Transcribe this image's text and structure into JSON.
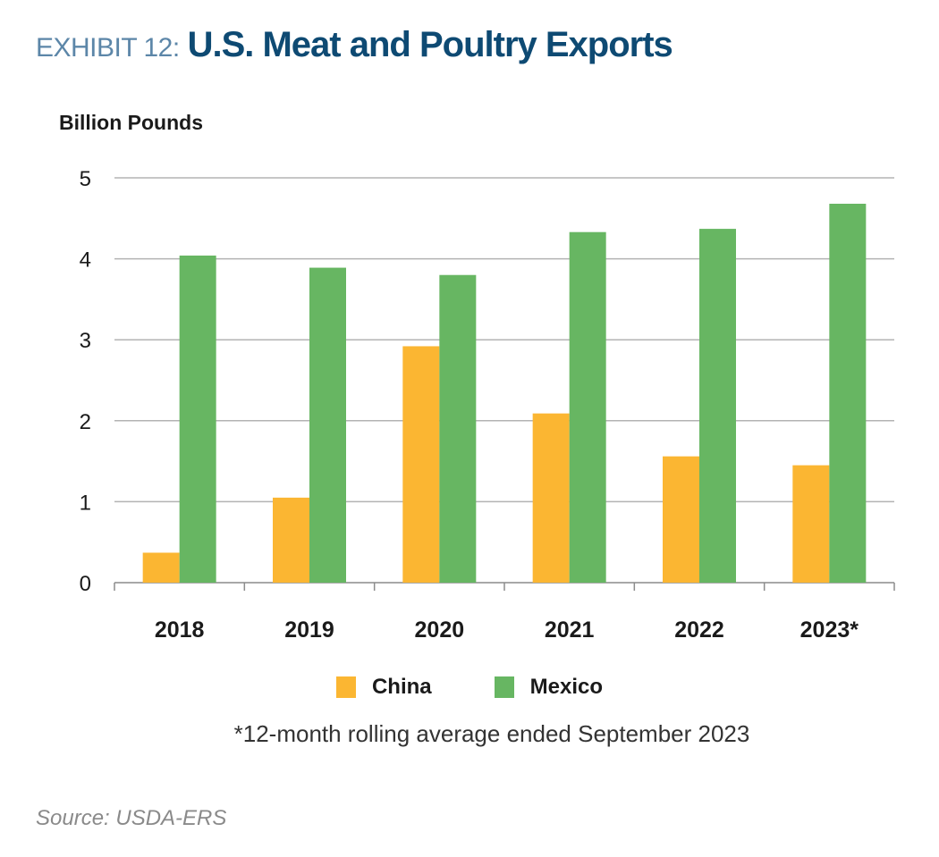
{
  "header": {
    "exhibit_label": "EXHIBIT 12:",
    "title": "U.S. Meat and Poultry Exports"
  },
  "chart_data": {
    "type": "bar",
    "title": "U.S. Meat and Poultry Exports",
    "ylabel": "Billion Pounds",
    "xlabel": "",
    "categories": [
      "2018",
      "2019",
      "2020",
      "2021",
      "2022",
      "2023*"
    ],
    "series": [
      {
        "name": "China",
        "color": "#fbb632",
        "values": [
          0.37,
          1.05,
          2.92,
          2.09,
          1.56,
          1.45
        ]
      },
      {
        "name": "Mexico",
        "color": "#67b662",
        "values": [
          4.04,
          3.89,
          3.8,
          4.33,
          4.37,
          4.68
        ]
      }
    ],
    "ylim": [
      0,
      5
    ],
    "yticks": [
      "0",
      "1",
      "2",
      "3",
      "4",
      "5"
    ],
    "grid": true,
    "legend_position": "bottom-center"
  },
  "footnote": "*12-month rolling average ended September 2023",
  "source": "Source: USDA-ERS",
  "colors": {
    "title_prefix": "#5c86a8",
    "title_main": "#0e4a73",
    "grid": "#b3b3b3",
    "axis": "#8c8c8c"
  }
}
